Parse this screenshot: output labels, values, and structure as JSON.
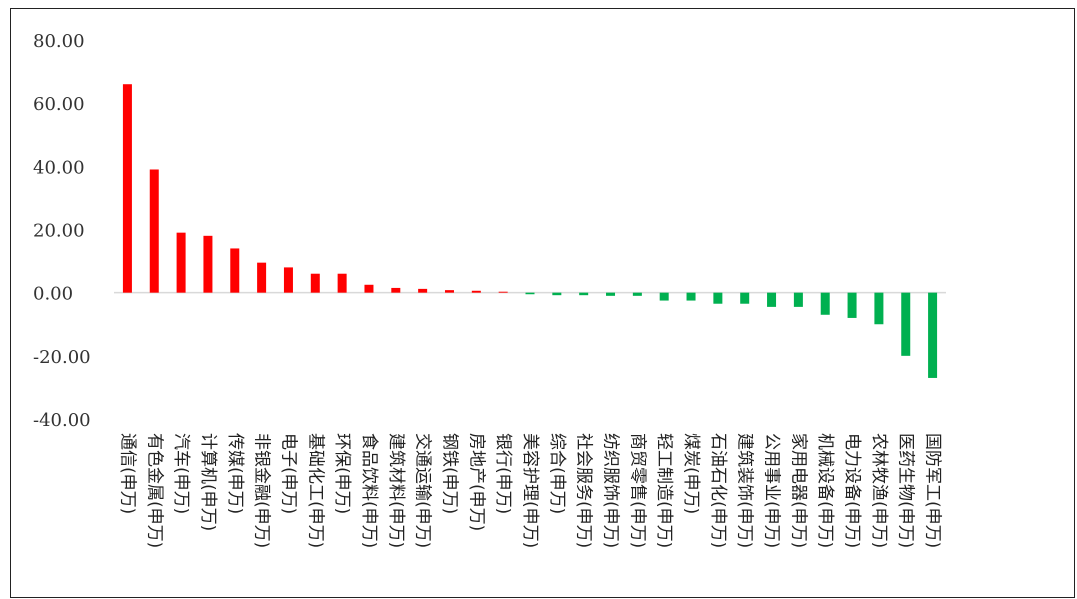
{
  "chart_data": {
    "type": "bar",
    "title": "",
    "xlabel": "",
    "ylabel": "",
    "ylim": [
      -40,
      80
    ],
    "yticks": [
      "80.00",
      "60.00",
      "40.00",
      "20.00",
      "0.00",
      "-20.00",
      "-40.00"
    ],
    "ytick_values": [
      80,
      60,
      40,
      20,
      0,
      -20,
      -40
    ],
    "grid": false,
    "legend": "none",
    "positive_color": "#ff0000",
    "negative_color": "#00b050",
    "categories": [
      "通信(申万)",
      "有色金属(申万)",
      "汽车(申万)",
      "计算机(申万)",
      "传媒(申万)",
      "非银金融(申万)",
      "电子(申万)",
      "基础化工(申万)",
      "环保(申万)",
      "食品饮料(申万)",
      "建筑材料(申万)",
      "交通运输(申万)",
      "钢铁(申万)",
      "房地产(申万)",
      "银行(申万)",
      "美容护理(申万)",
      "综合(申万)",
      "社会服务(申万)",
      "纺织服饰(申万)",
      "商贸零售(申万)",
      "轻工制造(申万)",
      "煤炭(申万)",
      "石油石化(申万)",
      "建筑装饰(申万)",
      "公用事业(申万)",
      "家用电器(申万)",
      "机械设备(申万)",
      "电力设备(申万)",
      "农林牧渔(申万)",
      "医药生物(申万)",
      "国防军工(申万)"
    ],
    "values": [
      66,
      39,
      19,
      18,
      14,
      9.5,
      8,
      6,
      6,
      2.5,
      1.5,
      1.2,
      0.8,
      0.6,
      0.3,
      -0.5,
      -0.8,
      -0.8,
      -1,
      -1,
      -2.5,
      -2.5,
      -3.5,
      -3.5,
      -4.5,
      -4.5,
      -7,
      -8,
      -10,
      -20,
      -27
    ]
  }
}
